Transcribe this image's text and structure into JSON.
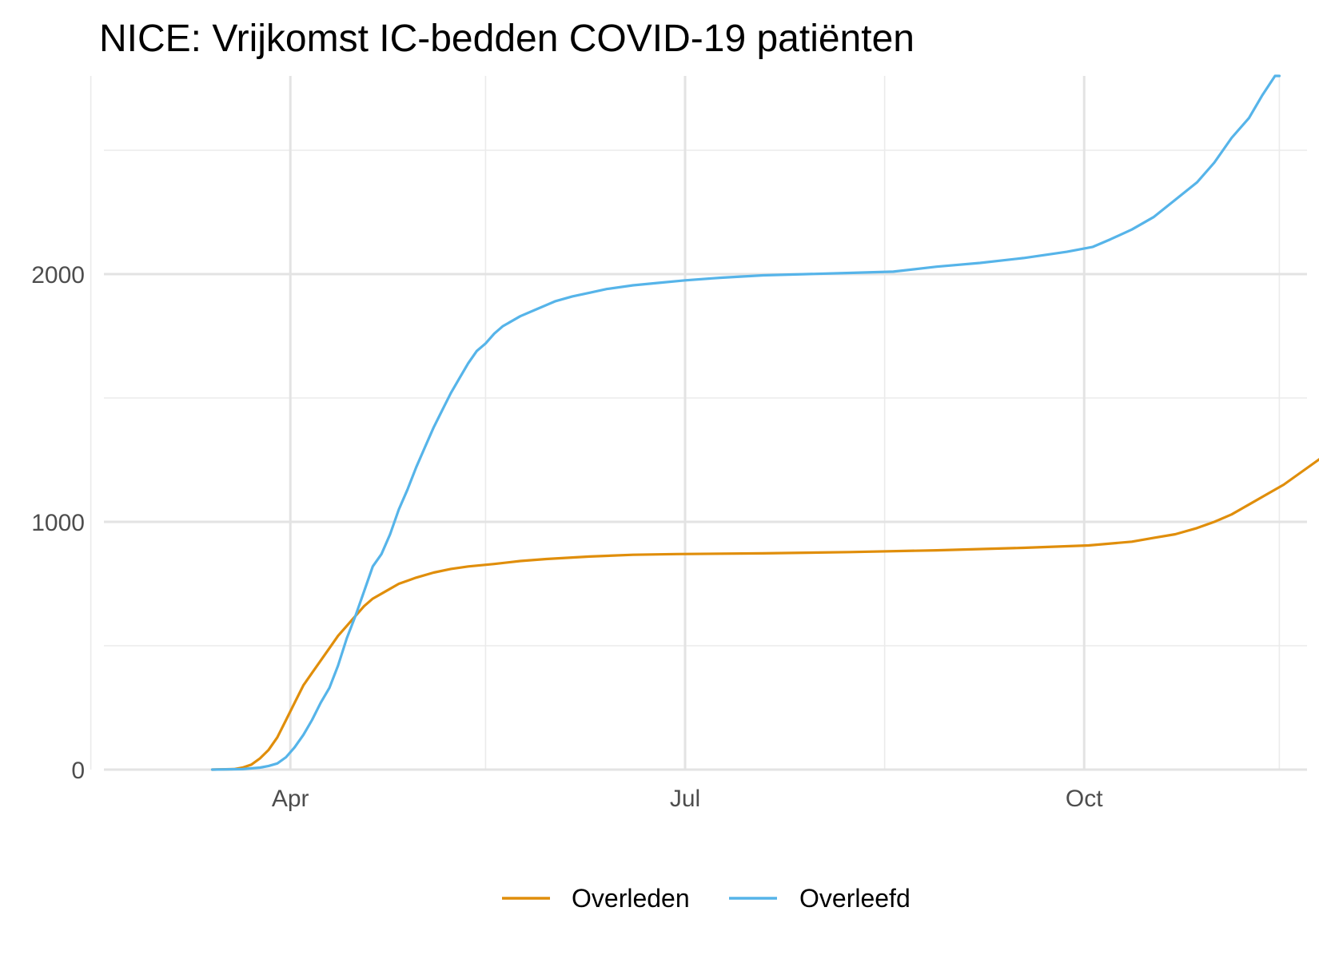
{
  "chart_data": {
    "type": "line",
    "title": "NICE: Vrijkomst IC-bedden COVID-19 patiënten",
    "xlabel": "",
    "ylabel": "",
    "x_range_days": [
      0,
      251
    ],
    "x_start_date": "2020-03-01",
    "ylim": [
      0,
      2800
    ],
    "y_ticks": [
      0,
      1000,
      2000
    ],
    "y_tick_labels": [
      "0",
      "1000",
      "2000"
    ],
    "y_minor_ticks": [
      500,
      1500,
      2500
    ],
    "x_ticks": [
      31,
      122,
      214
    ],
    "x_tick_labels": [
      "Apr",
      "Jul",
      "Oct"
    ],
    "x_minor_ticks": [
      76,
      168,
      259
    ],
    "grid": true,
    "legend_position": "bottom",
    "series": [
      {
        "name": "Overleden",
        "color": "#E08E0B",
        "points": [
          [
            13,
            0
          ],
          [
            18,
            2
          ],
          [
            20,
            8
          ],
          [
            22,
            20
          ],
          [
            24,
            45
          ],
          [
            26,
            80
          ],
          [
            28,
            130
          ],
          [
            30,
            200
          ],
          [
            32,
            270
          ],
          [
            34,
            340
          ],
          [
            36,
            390
          ],
          [
            38,
            440
          ],
          [
            40,
            490
          ],
          [
            42,
            540
          ],
          [
            44,
            580
          ],
          [
            46,
            620
          ],
          [
            48,
            660
          ],
          [
            50,
            690
          ],
          [
            53,
            720
          ],
          [
            56,
            750
          ],
          [
            60,
            775
          ],
          [
            64,
            795
          ],
          [
            68,
            810
          ],
          [
            72,
            820
          ],
          [
            78,
            830
          ],
          [
            84,
            842
          ],
          [
            90,
            850
          ],
          [
            100,
            860
          ],
          [
            110,
            867
          ],
          [
            120,
            870
          ],
          [
            140,
            873
          ],
          [
            160,
            878
          ],
          [
            180,
            885
          ],
          [
            200,
            895
          ],
          [
            215,
            905
          ],
          [
            225,
            920
          ],
          [
            230,
            935
          ],
          [
            235,
            950
          ],
          [
            240,
            975
          ],
          [
            244,
            1000
          ],
          [
            248,
            1030
          ],
          [
            252,
            1070
          ],
          [
            256,
            1110
          ],
          [
            260,
            1150
          ],
          [
            264,
            1200
          ],
          [
            268,
            1250
          ],
          [
            272,
            1300
          ],
          [
            275,
            1340
          ],
          [
            276,
            1350
          ]
        ]
      },
      {
        "name": "Overleefd",
        "color": "#56B4E9",
        "points": [
          [
            13,
            0
          ],
          [
            20,
            2
          ],
          [
            24,
            8
          ],
          [
            26,
            15
          ],
          [
            28,
            25
          ],
          [
            30,
            50
          ],
          [
            32,
            90
          ],
          [
            34,
            140
          ],
          [
            36,
            200
          ],
          [
            38,
            270
          ],
          [
            40,
            330
          ],
          [
            42,
            420
          ],
          [
            44,
            530
          ],
          [
            46,
            620
          ],
          [
            48,
            720
          ],
          [
            50,
            820
          ],
          [
            52,
            870
          ],
          [
            54,
            950
          ],
          [
            56,
            1050
          ],
          [
            58,
            1130
          ],
          [
            60,
            1220
          ],
          [
            62,
            1300
          ],
          [
            64,
            1380
          ],
          [
            66,
            1450
          ],
          [
            68,
            1520
          ],
          [
            70,
            1580
          ],
          [
            72,
            1640
          ],
          [
            74,
            1690
          ],
          [
            76,
            1720
          ],
          [
            78,
            1760
          ],
          [
            80,
            1790
          ],
          [
            84,
            1830
          ],
          [
            88,
            1860
          ],
          [
            92,
            1890
          ],
          [
            96,
            1910
          ],
          [
            100,
            1925
          ],
          [
            104,
            1940
          ],
          [
            110,
            1955
          ],
          [
            116,
            1965
          ],
          [
            122,
            1975
          ],
          [
            130,
            1985
          ],
          [
            140,
            1995
          ],
          [
            150,
            2000
          ],
          [
            160,
            2005
          ],
          [
            170,
            2010
          ],
          [
            180,
            2030
          ],
          [
            190,
            2045
          ],
          [
            200,
            2065
          ],
          [
            210,
            2090
          ],
          [
            216,
            2110
          ],
          [
            220,
            2140
          ],
          [
            225,
            2180
          ],
          [
            230,
            2230
          ],
          [
            235,
            2300
          ],
          [
            240,
            2370
          ],
          [
            244,
            2450
          ],
          [
            248,
            2550
          ],
          [
            252,
            2630
          ],
          [
            255,
            2720
          ],
          [
            258,
            2800
          ],
          [
            259,
            2800
          ]
        ]
      }
    ]
  }
}
